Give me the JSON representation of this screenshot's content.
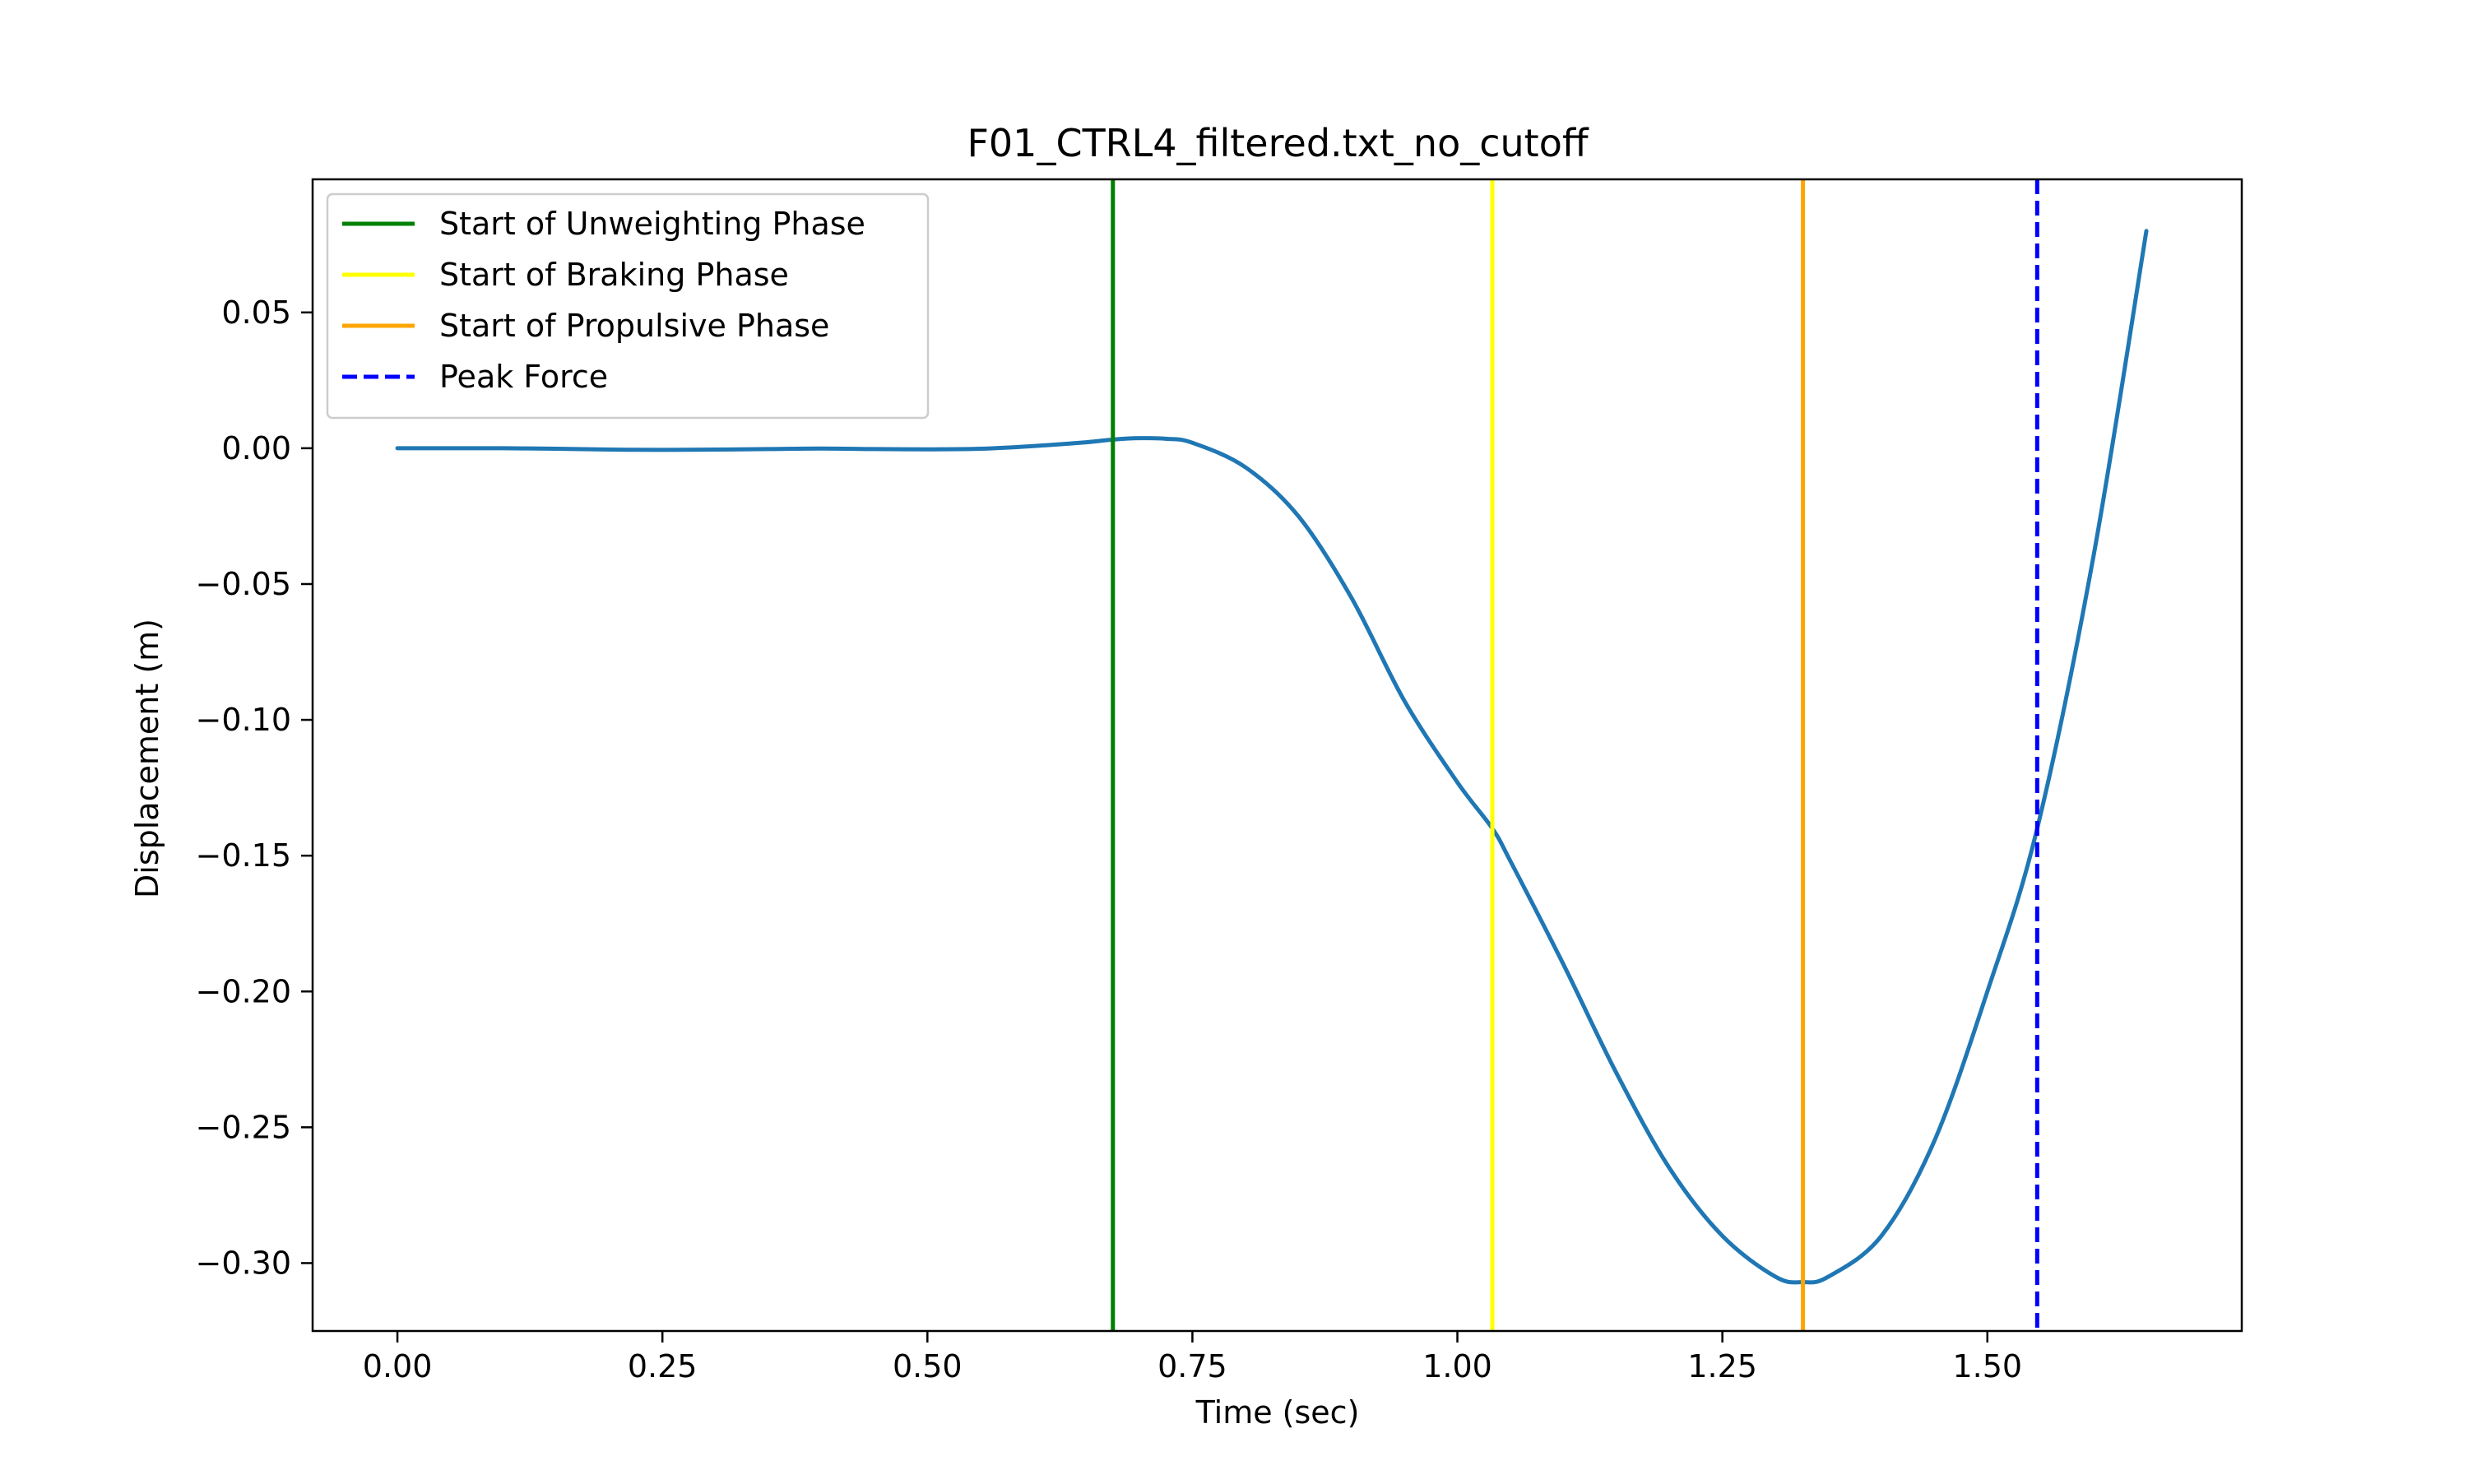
{
  "chart_data": {
    "type": "line",
    "title": "F01_CTRL4_filtered.txt_no_cutoff",
    "xlabel": "Time (sec)",
    "ylabel": "Displacement (m)",
    "xlim": [
      -0.08,
      1.74
    ],
    "ylim": [
      -0.325,
      0.099
    ],
    "grid": false,
    "legend_position": "top-left",
    "x_ticks": [
      0.0,
      0.25,
      0.5,
      0.75,
      1.0,
      1.25,
      1.5
    ],
    "x_tick_labels": [
      "0.00",
      "0.25",
      "0.50",
      "0.75",
      "1.00",
      "1.25",
      "1.50"
    ],
    "y_ticks": [
      0.05,
      0.0,
      -0.05,
      -0.1,
      -0.15,
      -0.2,
      -0.25,
      -0.3
    ],
    "y_tick_labels": [
      "0.05",
      "0.00",
      "−0.05",
      "−0.10",
      "−0.15",
      "−0.20",
      "−0.25",
      "−0.30"
    ],
    "series": [
      {
        "color": "#1f77b4",
        "x": [
          0.0,
          0.05,
          0.1,
          0.15,
          0.2,
          0.25,
          0.3,
          0.35,
          0.4,
          0.45,
          0.5,
          0.55,
          0.6,
          0.65,
          0.675,
          0.7,
          0.725,
          0.75,
          0.8,
          0.85,
          0.9,
          0.95,
          1.0,
          1.033,
          1.05,
          1.1,
          1.15,
          1.2,
          1.25,
          1.3,
          1.326,
          1.35,
          1.4,
          1.45,
          1.5,
          1.547,
          1.6,
          1.65
        ],
        "y": [
          0.0,
          0.0,
          0.0,
          -0.0002,
          -0.0005,
          -0.0006,
          -0.0005,
          -0.0003,
          -0.0001,
          -0.0003,
          -0.0004,
          -0.0002,
          0.0008,
          0.0022,
          0.0032,
          0.0037,
          0.0035,
          0.002,
          -0.007,
          -0.025,
          -0.055,
          -0.093,
          -0.123,
          -0.14,
          -0.152,
          -0.19,
          -0.23,
          -0.265,
          -0.29,
          -0.305,
          -0.307,
          -0.305,
          -0.29,
          -0.255,
          -0.2,
          -0.14,
          -0.04,
          0.08
        ]
      }
    ],
    "vlines": [
      {
        "label": "Start of Unweighting Phase",
        "x": 0.675,
        "color": "#008000",
        "style": "solid"
      },
      {
        "label": "Start of Braking Phase",
        "x": 1.033,
        "color": "#ffff00",
        "style": "solid"
      },
      {
        "label": "Start of Propulsive Phase",
        "x": 1.326,
        "color": "#ffa500",
        "style": "solid"
      },
      {
        "label": "Peak Force",
        "x": 1.547,
        "color": "#0000ff",
        "style": "dashed"
      }
    ]
  }
}
